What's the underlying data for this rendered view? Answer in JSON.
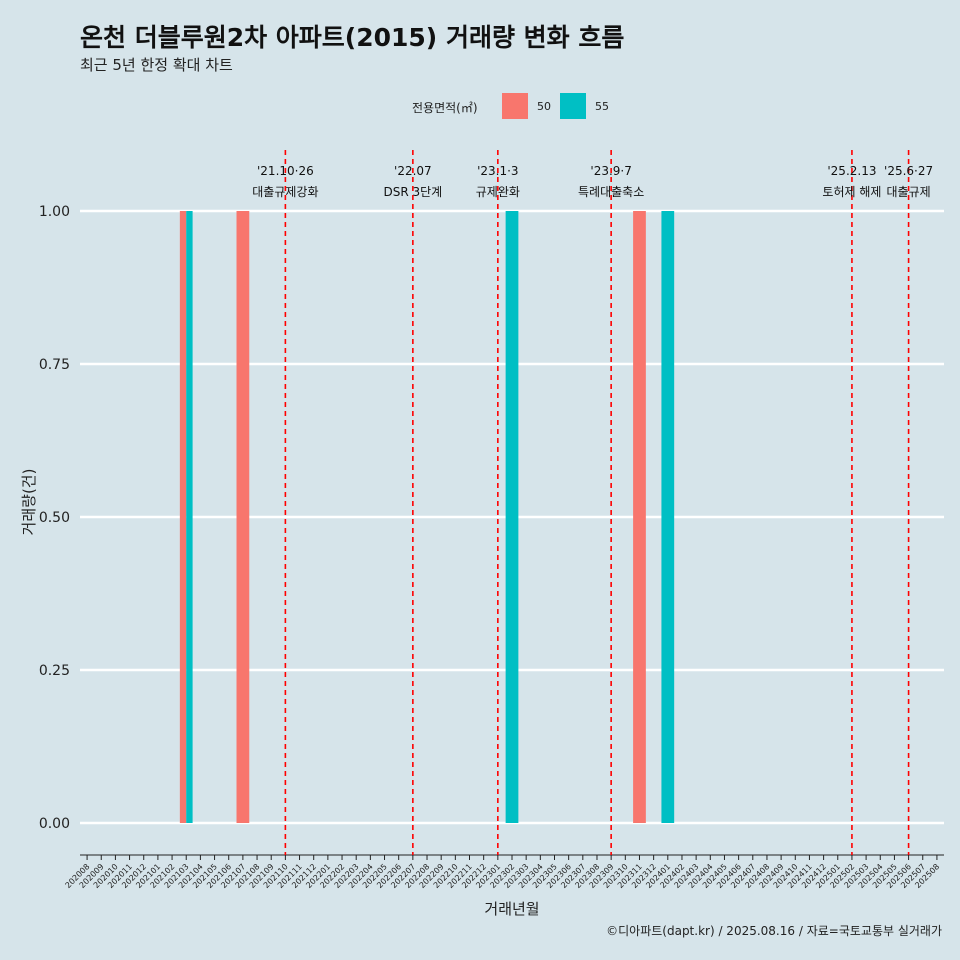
{
  "header": {
    "title": "온천 더블루원2차 아파트(2015) 거래량 변화 흐름",
    "subtitle": "최근 5년 한정 확대 차트"
  },
  "legend": {
    "title": "전용면적(㎡)",
    "items": [
      {
        "label": "50",
        "color": "#F8766D"
      },
      {
        "label": "55",
        "color": "#00BFC4"
      }
    ]
  },
  "caption": "©디아파트(dapt.kr) / 2025.08.16 / 자료=국토교통부 실거래가",
  "chart_data": {
    "type": "bar",
    "xlabel": "거래년월",
    "ylabel": "거래량(건)",
    "ylim": [
      0,
      1
    ],
    "yticks": [
      "0.00",
      "0.25",
      "0.50",
      "0.75",
      "1.00"
    ],
    "categories": [
      "202008",
      "202009",
      "202010",
      "202011",
      "202012",
      "202101",
      "202102",
      "202103",
      "202104",
      "202105",
      "202106",
      "202107",
      "202108",
      "202109",
      "202110",
      "202111",
      "202112",
      "202201",
      "202202",
      "202203",
      "202204",
      "202205",
      "202206",
      "202207",
      "202208",
      "202209",
      "202210",
      "202211",
      "202212",
      "202301",
      "202302",
      "202303",
      "202304",
      "202305",
      "202306",
      "202307",
      "202308",
      "202309",
      "202310",
      "202311",
      "202312",
      "202401",
      "202402",
      "202403",
      "202404",
      "202405",
      "202406",
      "202407",
      "202408",
      "202409",
      "202410",
      "202411",
      "202412",
      "202501",
      "202502",
      "202503",
      "202504",
      "202505",
      "202506",
      "202507",
      "202508"
    ],
    "series": [
      {
        "name": "50",
        "color": "#F8766D",
        "points": [
          {
            "x": "202103",
            "y": 1
          },
          {
            "x": "202107",
            "y": 1
          },
          {
            "x": "202311",
            "y": 1
          }
        ]
      },
      {
        "name": "55",
        "color": "#00BFC4",
        "points": [
          {
            "x": "202103",
            "y": 1
          },
          {
            "x": "202302",
            "y": 1
          },
          {
            "x": "202401",
            "y": 1
          }
        ]
      }
    ],
    "events": [
      {
        "date": "202110",
        "line1": "'21.10·26",
        "line2": "대출규제강화"
      },
      {
        "date": "202207",
        "line1": "'22.07",
        "line2": "DSR 3단계"
      },
      {
        "date": "202301",
        "line1": "'23.1·3",
        "line2": "규제완화"
      },
      {
        "date": "202309",
        "line1": "'23.9·7",
        "line2": "특례대출축소"
      },
      {
        "date": "202502",
        "line1": "'25.2.13",
        "line2": "토허제 해제"
      },
      {
        "date": "202506",
        "line1": "'25.6·27",
        "line2": "대출규제"
      }
    ]
  }
}
